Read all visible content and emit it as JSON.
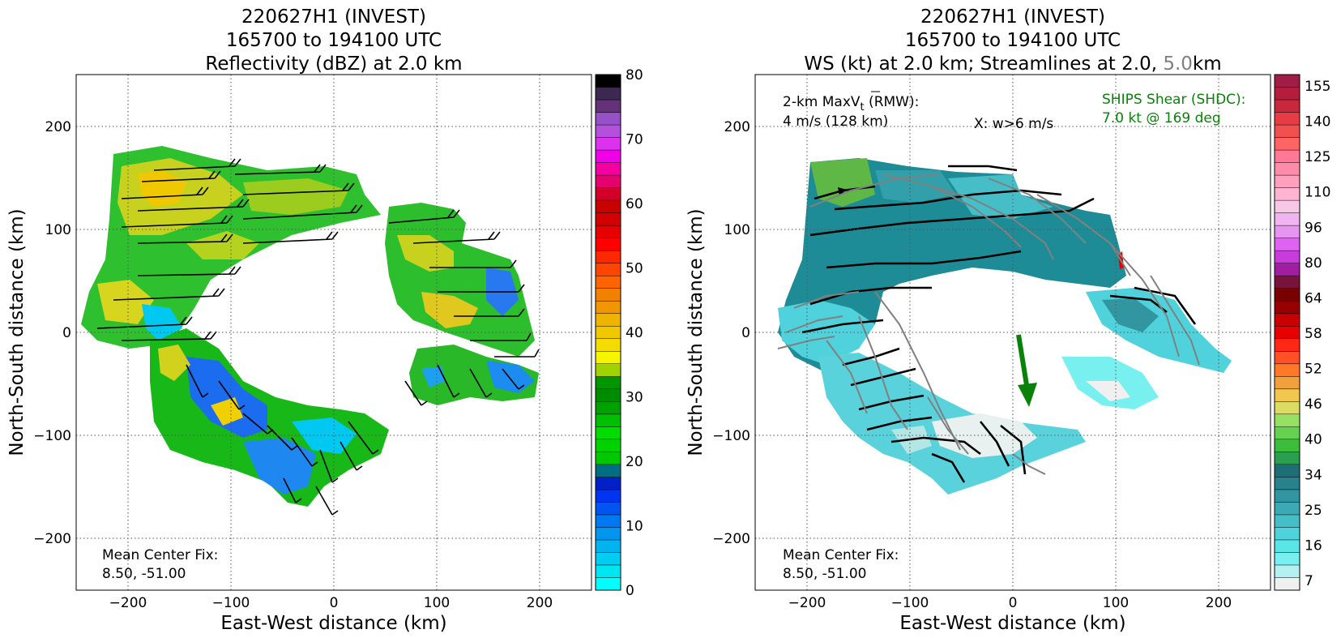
{
  "left_panel": {
    "title_lines": [
      "220627H1 (INVEST)",
      "165700 to 194100 UTC",
      "Reflectivity (dBZ) at 2.0 km"
    ],
    "xlabel": "East-West distance (km)",
    "ylabel": "North-South distance (km)",
    "annotation_lines": [
      "Mean Center Fix:",
      "8.50, -51.00"
    ],
    "colorbar": {
      "ticks": [
        "0",
        "10",
        "20",
        "30",
        "40",
        "50",
        "60",
        "70",
        "80"
      ],
      "colors": [
        "#00ffff",
        "#00e6f0",
        "#00cdf0",
        "#00b4f0",
        "#0096f0",
        "#0078f0",
        "#0055f0",
        "#0035f0",
        "#0020c8",
        "#006e82",
        "#00c800",
        "#00d200",
        "#00dc00",
        "#00be00",
        "#00a000",
        "#008c00",
        "#009600",
        "#a0d200",
        "#f5f500",
        "#f5dc00",
        "#f0c800",
        "#f0b400",
        "#f09600",
        "#f08200",
        "#ff6400",
        "#ff4600",
        "#ff2800",
        "#ff0000",
        "#e60000",
        "#d20000",
        "#c80000",
        "#d20028",
        "#e6006e",
        "#f500a0",
        "#f000e6",
        "#dc32f0",
        "#b450dc",
        "#9650c8",
        "#643278",
        "#3c2850",
        "#000000"
      ]
    }
  },
  "right_panel": {
    "title_lines": [
      "220627H1 (INVEST)",
      "165700 to 194100 UTC"
    ],
    "title_line3_parts": [
      "WS (kt) at 2.0 km; Streamlines at 2.0, ",
      "5.0",
      "km"
    ],
    "xlabel": "East-West distance (km)",
    "ylabel": "North-South distance (km)",
    "annotation_lines": [
      "Mean Center Fix:",
      "8.50, -51.00"
    ],
    "vt_label_main": "2-km MaxV",
    "vt_label_sub": "t",
    "vt_label_rest": " (RMW):",
    "vt_value": "4 m/s (128 km)",
    "w_label": "X: w>6 m/s",
    "shear_lines": [
      "SHIPS Shear (SHDC):",
      "7.0 kt @ 169 deg"
    ],
    "colorbar": {
      "ticks": [
        "7",
        "16",
        "25",
        "34",
        "40",
        "46",
        "52",
        "58",
        "64",
        "80",
        "96",
        "110",
        "125",
        "140",
        "155"
      ],
      "colors": [
        "#f0f0f0",
        "#b4f0f0",
        "#78f0f0",
        "#5ae6e6",
        "#50d2dc",
        "#46bec8",
        "#3caab4",
        "#3296a0",
        "#28828c",
        "#1e6e78",
        "#28a050",
        "#3cbe3c",
        "#64d250",
        "#96e164",
        "#dcdc64",
        "#f0c850",
        "#f0a03c",
        "#ff7828",
        "#ff5028",
        "#ff2814",
        "#e60000",
        "#c80000",
        "#960000",
        "#780000",
        "#78143c",
        "#a01ea0",
        "#c83cdc",
        "#dc64f0",
        "#e696f0",
        "#f0b4f0",
        "#f5c8e6",
        "#ffb4d2",
        "#ffa0be",
        "#ff8caa",
        "#ff7896",
        "#ff6464",
        "#f05050",
        "#e63c46",
        "#c8283c",
        "#b41e3c",
        "#a01e46"
      ]
    }
  },
  "chart_data": [
    {
      "type": "heatmap",
      "title": "220627H1 (INVEST) 165700 to 194100 UTC Reflectivity (dBZ) at 2.0 km",
      "xlabel": "East-West distance (km)",
      "ylabel": "North-South distance (km)",
      "xlim": [
        -250,
        250
      ],
      "ylim": [
        -250,
        250
      ],
      "x_ticks": [
        -200,
        -100,
        0,
        100,
        200
      ],
      "y_ticks": [
        -200,
        -100,
        0,
        100,
        200
      ],
      "grid": true,
      "colorbar_range": [
        0,
        80
      ],
      "field": "Reflectivity (dBZ)",
      "overlay": "wind barbs"
    },
    {
      "type": "heatmap",
      "title": "220627H1 (INVEST) 165700 to 194100 UTC WS (kt) at 2.0 km; Streamlines at 2.0, 5.0km",
      "xlabel": "East-West distance (km)",
      "ylabel": "North-South distance (km)",
      "xlim": [
        -250,
        250
      ],
      "ylim": [
        -250,
        250
      ],
      "x_ticks": [
        -200,
        -100,
        0,
        100,
        200
      ],
      "y_ticks": [
        -200,
        -100,
        0,
        100,
        200
      ],
      "grid": true,
      "colorbar_range": [
        7,
        155
      ],
      "field": "WS (kt)",
      "overlay": "streamlines 2.0 km (black), 5.0 km (gray)",
      "shear_vector": {
        "speed_kt": 7.0,
        "direction_deg": 169
      }
    }
  ]
}
